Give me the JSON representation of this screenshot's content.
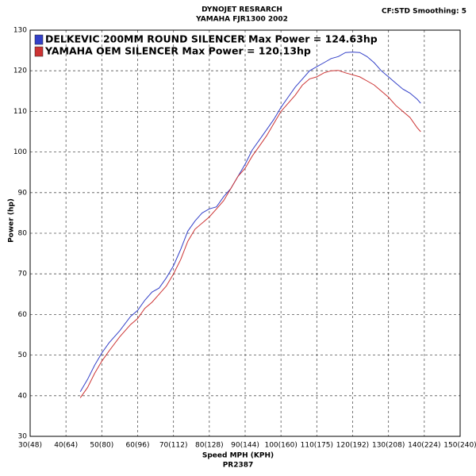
{
  "chart_data": {
    "type": "line",
    "title": "DYNOJET RESRARCH",
    "subtitle": "YAMAHA FJR1300 2002",
    "annotation": "CF:STD Smoothing: 5",
    "x_label": "Speed MPH (KPH)",
    "x_sublabel": "PR2387",
    "y_label": "Power (hp)",
    "grid": true,
    "legend": "upper left",
    "xlim": [
      30,
      150
    ],
    "ylim": [
      30,
      130
    ],
    "xticks": [
      {
        "value": 30,
        "label": "30(48)"
      },
      {
        "value": 40,
        "label": "40(64)"
      },
      {
        "value": 50,
        "label": "50(80)"
      },
      {
        "value": 60,
        "label": "60(96)"
      },
      {
        "value": 70,
        "label": "70(112)"
      },
      {
        "value": 80,
        "label": "80(128)"
      },
      {
        "value": 90,
        "label": "90(144)"
      },
      {
        "value": 100,
        "label": "100(160)"
      },
      {
        "value": 110,
        "label": "110(175)"
      },
      {
        "value": 120,
        "label": "120(192)"
      },
      {
        "value": 130,
        "label": "130(208)"
      },
      {
        "value": 140,
        "label": "140(224)"
      },
      {
        "value": 150,
        "label": "150(240)"
      }
    ],
    "yticks": [
      30,
      40,
      50,
      60,
      70,
      80,
      90,
      100,
      110,
      120,
      130
    ],
    "x": [
      44,
      46,
      48,
      50,
      52,
      55,
      58,
      60,
      62,
      64,
      66,
      68,
      70,
      72,
      74,
      76,
      78,
      80,
      82,
      84,
      86,
      88,
      90,
      92,
      94,
      96,
      98,
      100,
      102,
      104,
      106,
      108,
      110,
      112,
      114,
      116,
      118,
      120,
      122,
      124,
      126,
      128,
      130,
      132,
      134,
      136,
      138,
      139
    ],
    "series": [
      {
        "name": "DELKEVIC 200MM ROUND SILENCER Max Power = 124.63hp",
        "color": "#3340c8",
        "values": [
          41,
          44,
          47.5,
          50.5,
          53,
          56,
          59.5,
          61,
          63.5,
          65.5,
          66.5,
          69,
          72,
          76,
          80.5,
          83,
          85,
          86,
          86.5,
          89,
          91,
          94,
          97,
          100.5,
          103,
          105.5,
          108,
          111,
          113.5,
          116,
          118,
          120,
          121,
          122,
          123,
          123.5,
          124.5,
          124.6,
          124.5,
          123.5,
          122,
          120,
          118.5,
          117,
          115.5,
          114.5,
          113,
          112
        ]
      },
      {
        "name": "YAMAHA OEM SILENCER Max Power = 120.13hp",
        "color": "#cc3333",
        "values": [
          39.5,
          42,
          45.5,
          48.5,
          51,
          54.5,
          57.5,
          59,
          61.5,
          63,
          65,
          67,
          70,
          73.5,
          78,
          81,
          82.5,
          84,
          86,
          88,
          91,
          94,
          96,
          99,
          101.5,
          104,
          107,
          110,
          112,
          114,
          116.5,
          118,
          118.5,
          119.5,
          120,
          120.1,
          119.5,
          119,
          118.5,
          117.5,
          116.5,
          115,
          113.5,
          111.5,
          110,
          108.5,
          106,
          105
        ]
      }
    ]
  }
}
